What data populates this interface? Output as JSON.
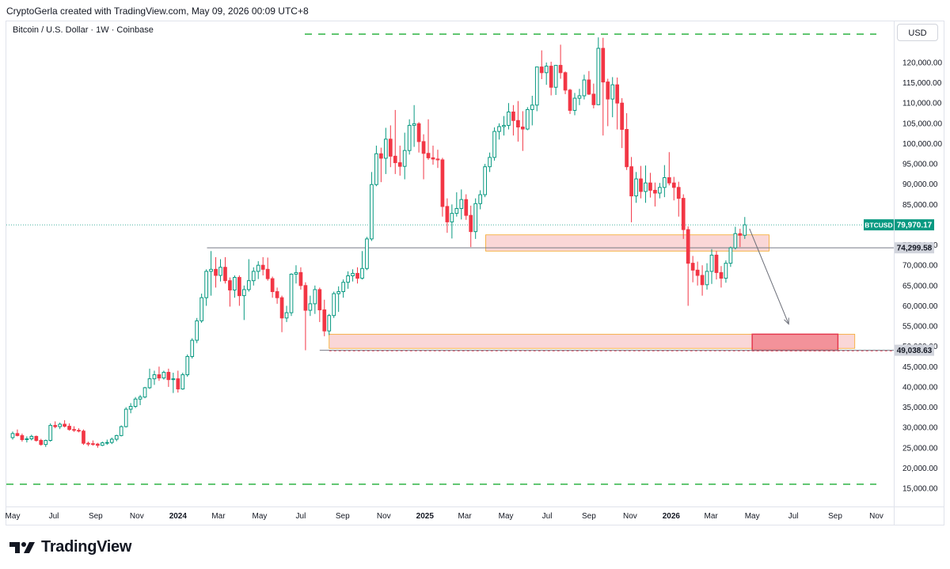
{
  "header": {
    "attribution": "CryptoGerla created with TradingView.com, May 09, 2026 00:09 UTC+8"
  },
  "chart_header": {
    "symbol_title": "Bitcoin / U.S. Dollar · 1W · Coinbase",
    "currency": "USD"
  },
  "brand": {
    "name": "TradingView",
    "logo_icon": "tradingview-logo-icon"
  },
  "colors": {
    "up": "#089981",
    "down": "#f23645",
    "zone_fill": "#f8c9c9",
    "zone_border": "#f5a623",
    "target_fill": "#f28b94",
    "target_border": "#e5394f",
    "dash_green": "#2fb344",
    "level_line": "#787b86"
  },
  "chart_data": {
    "type": "candlestick",
    "title": "Bitcoin / U.S. Dollar · 1W · Coinbase",
    "currency": "USD",
    "ylim": [
      12000,
      130000
    ],
    "y_ticks": [
      "120,000.00",
      "115,000.00",
      "110,000.00",
      "105,000.00",
      "100,000.00",
      "95,000.00",
      "90,000.00",
      "85,000.00",
      "75,000.00",
      "70,000.00",
      "65,000.00",
      "60,000.00",
      "55,000.00",
      "50,000.00",
      "45,000.00",
      "40,000.00",
      "35,000.00",
      "30,000.00",
      "25,000.00",
      "20,000.00",
      "15,000.00"
    ],
    "x_ticks": [
      {
        "label": "May",
        "date": "2023-05-01",
        "bold": false
      },
      {
        "label": "Jul",
        "date": "2023-07-01",
        "bold": false
      },
      {
        "label": "Sep",
        "date": "2023-09-01",
        "bold": false
      },
      {
        "label": "Nov",
        "date": "2023-11-01",
        "bold": false
      },
      {
        "label": "2024",
        "date": "2024-01-01",
        "bold": true
      },
      {
        "label": "Mar",
        "date": "2024-03-01",
        "bold": false
      },
      {
        "label": "May",
        "date": "2024-05-01",
        "bold": false
      },
      {
        "label": "Jul",
        "date": "2024-07-01",
        "bold": false
      },
      {
        "label": "Sep",
        "date": "2024-09-01",
        "bold": false
      },
      {
        "label": "Nov",
        "date": "2024-11-01",
        "bold": false
      },
      {
        "label": "2025",
        "date": "2025-01-01",
        "bold": true
      },
      {
        "label": "Mar",
        "date": "2025-03-01",
        "bold": false
      },
      {
        "label": "May",
        "date": "2025-05-01",
        "bold": false
      },
      {
        "label": "Jul",
        "date": "2025-07-01",
        "bold": false
      },
      {
        "label": "Sep",
        "date": "2025-09-01",
        "bold": false
      },
      {
        "label": "Nov",
        "date": "2025-11-01",
        "bold": false
      },
      {
        "label": "2026",
        "date": "2026-01-01",
        "bold": true
      },
      {
        "label": "Mar",
        "date": "2026-03-01",
        "bold": false
      },
      {
        "label": "May",
        "date": "2026-05-01",
        "bold": false
      },
      {
        "label": "Jul",
        "date": "2026-07-01",
        "bold": false
      },
      {
        "label": "Sep",
        "date": "2026-09-01",
        "bold": false
      },
      {
        "label": "Nov",
        "date": "2026-11-01",
        "bold": false
      }
    ],
    "price_labels": [
      {
        "symbol": "BTCUSD",
        "value": "79,970.17",
        "price": 79970.17
      },
      {
        "value": "74,299.58",
        "price": 74299.58
      },
      {
        "value": "49,038.63",
        "price": 49038.63
      }
    ],
    "levels": [
      {
        "price": 127000,
        "style": "dashed-green"
      },
      {
        "price": 16000,
        "style": "dashed-green"
      },
      {
        "price": 74299.58,
        "from": "2024-02-13",
        "style": "solid-gray"
      },
      {
        "price": 49038.63,
        "from": "2024-07-29",
        "style": "solid-gray"
      },
      {
        "price": 49038.63,
        "from": "2024-08-12",
        "style": "dotted-red"
      }
    ],
    "zones": [
      {
        "from": "2025-04-01",
        "to": "2026-05-26",
        "top": 77500,
        "bottom": 73500,
        "kind": "resistance"
      },
      {
        "from": "2024-08-12",
        "to": "2026-09-30",
        "top": 53000,
        "bottom": 49500,
        "kind": "support"
      },
      {
        "from": "2026-05-01",
        "to": "2026-09-05",
        "top": 53000,
        "bottom": 49038.63,
        "kind": "target"
      }
    ],
    "arrow": {
      "from": {
        "date": "2026-04-27",
        "price": 79000
      },
      "to": {
        "date": "2026-06-24",
        "price": 55500
      }
    },
    "start_date": "2023-05-01",
    "ohlc": [
      [
        27500,
        29000,
        27000,
        28500
      ],
      [
        28500,
        29500,
        27800,
        28000
      ],
      [
        28000,
        28500,
        26500,
        27000
      ],
      [
        27000,
        27800,
        26300,
        27200
      ],
      [
        27200,
        28200,
        26800,
        27800
      ],
      [
        27800,
        28000,
        26500,
        26800
      ],
      [
        26800,
        27200,
        25500,
        25800
      ],
      [
        25800,
        27000,
        25200,
        26800
      ],
      [
        26800,
        31000,
        26500,
        30500
      ],
      [
        30500,
        31500,
        29800,
        30200
      ],
      [
        30200,
        31200,
        29600,
        30800
      ],
      [
        30800,
        31800,
        30000,
        30300
      ],
      [
        30300,
        31000,
        29200,
        29500
      ],
      [
        29500,
        30300,
        28900,
        29300
      ],
      [
        29300,
        29800,
        28800,
        29100
      ],
      [
        29100,
        29500,
        25700,
        26100
      ],
      [
        26100,
        26500,
        25400,
        26000
      ],
      [
        26000,
        26800,
        25500,
        25900
      ],
      [
        25900,
        26200,
        25000,
        25600
      ],
      [
        25600,
        26500,
        25400,
        26200
      ],
      [
        26200,
        27000,
        25700,
        26300
      ],
      [
        26300,
        27500,
        25900,
        27100
      ],
      [
        27100,
        28200,
        26600,
        28000
      ],
      [
        28000,
        30500,
        27800,
        30200
      ],
      [
        30200,
        35000,
        30000,
        34500
      ],
      [
        34500,
        36000,
        33500,
        35200
      ],
      [
        35200,
        37500,
        34800,
        37000
      ],
      [
        37000,
        38000,
        35500,
        37500
      ],
      [
        37500,
        40000,
        37200,
        39800
      ],
      [
        39800,
        44500,
        39500,
        42000
      ],
      [
        42000,
        44000,
        40500,
        43000
      ],
      [
        43000,
        45000,
        41500,
        42200
      ],
      [
        42200,
        44000,
        41800,
        43600
      ],
      [
        43600,
        44500,
        40000,
        41800
      ],
      [
        41800,
        43500,
        38500,
        42000
      ],
      [
        42000,
        44000,
        38600,
        39500
      ],
      [
        39500,
        43500,
        39300,
        43000
      ],
      [
        43000,
        48000,
        42500,
        47500
      ],
      [
        47500,
        52000,
        47000,
        51500
      ],
      [
        51500,
        57000,
        50800,
        56300
      ],
      [
        56300,
        63000,
        55800,
        62000
      ],
      [
        62000,
        69000,
        60000,
        68500
      ],
      [
        68500,
        73500,
        62500,
        69000
      ],
      [
        69000,
        72000,
        64500,
        67500
      ],
      [
        67500,
        71500,
        66000,
        69500
      ],
      [
        69500,
        72000,
        65500,
        66200
      ],
      [
        66200,
        67000,
        59800,
        63900
      ],
      [
        63900,
        67500,
        62000,
        67000
      ],
      [
        67000,
        67500,
        60000,
        62500
      ],
      [
        62500,
        65000,
        56500,
        64000
      ],
      [
        64000,
        71500,
        63500,
        66200
      ],
      [
        66200,
        69500,
        65000,
        68500
      ],
      [
        68500,
        71000,
        66600,
        70000
      ],
      [
        70000,
        72000,
        67500,
        69000
      ],
      [
        69000,
        71900,
        66200,
        66700
      ],
      [
        66700,
        67200,
        62000,
        63500
      ],
      [
        63500,
        64500,
        60500,
        62000
      ],
      [
        62000,
        62500,
        53500,
        57000
      ],
      [
        57000,
        60000,
        56000,
        58300
      ],
      [
        58300,
        68000,
        57500,
        67800
      ],
      [
        67800,
        70000,
        65500,
        68200
      ],
      [
        68200,
        69500,
        64000,
        65000
      ],
      [
        65000,
        65800,
        49038,
        58900
      ],
      [
        58900,
        62500,
        57500,
        60500
      ],
      [
        60500,
        65000,
        58000,
        64000
      ],
      [
        64000,
        64500,
        56000,
        59000
      ],
      [
        59000,
        61500,
        52500,
        53800
      ],
      [
        53800,
        58000,
        52800,
        57600
      ],
      [
        57600,
        63500,
        57000,
        63000
      ],
      [
        63000,
        64800,
        58500,
        63500
      ],
      [
        63500,
        66500,
        62000,
        65800
      ],
      [
        65800,
        68500,
        64200,
        67400
      ],
      [
        67400,
        69000,
        66000,
        68000
      ],
      [
        68000,
        69500,
        65500,
        66800
      ],
      [
        66800,
        73500,
        66500,
        69200
      ],
      [
        69200,
        77000,
        68800,
        76500
      ],
      [
        76500,
        93000,
        76000,
        89900
      ],
      [
        89900,
        99500,
        89500,
        97500
      ],
      [
        97500,
        99000,
        90500,
        96400
      ],
      [
        96400,
        103900,
        92500,
        101100
      ],
      [
        101100,
        104500,
        94200,
        96900
      ],
      [
        96900,
        108300,
        92500,
        95300
      ],
      [
        95300,
        99500,
        92100,
        94400
      ],
      [
        94400,
        102700,
        91200,
        98300
      ],
      [
        98300,
        106000,
        97300,
        104500
      ],
      [
        104500,
        109500,
        99200,
        104900
      ],
      [
        104900,
        105300,
        97800,
        100500
      ],
      [
        100500,
        102300,
        91200,
        97600
      ],
      [
        97600,
        106000,
        96000,
        96500
      ],
      [
        96500,
        99500,
        94800,
        96200
      ],
      [
        96200,
        98500,
        94000,
        96000
      ],
      [
        96000,
        96500,
        82000,
        84500
      ],
      [
        84500,
        86500,
        78000,
        80700
      ],
      [
        80700,
        85000,
        76600,
        82800
      ],
      [
        82800,
        88000,
        82000,
        84000
      ],
      [
        84000,
        88700,
        81300,
        86200
      ],
      [
        86200,
        87500,
        81200,
        82300
      ],
      [
        82300,
        84700,
        74500,
        78300
      ],
      [
        78300,
        86500,
        76500,
        85200
      ],
      [
        85200,
        88500,
        83800,
        87400
      ],
      [
        87400,
        95000,
        86800,
        94300
      ],
      [
        94300,
        97800,
        93000,
        96600
      ],
      [
        96600,
        104000,
        95800,
        103000
      ],
      [
        103000,
        105000,
        101000,
        104200
      ],
      [
        104200,
        106800,
        102000,
        104500
      ],
      [
        104500,
        110000,
        103500,
        107800
      ],
      [
        107800,
        109500,
        102000,
        105700
      ],
      [
        105700,
        110500,
        100500,
        104100
      ],
      [
        104100,
        108000,
        98200,
        103600
      ],
      [
        103600,
        109000,
        103300,
        108400
      ],
      [
        108400,
        111800,
        104500,
        109500
      ],
      [
        109500,
        118900,
        108000,
        118900
      ],
      [
        118900,
        123000,
        115900,
        117500
      ],
      [
        117500,
        120000,
        114500,
        119100
      ],
      [
        119100,
        120200,
        111900,
        113900
      ],
      [
        113900,
        119000,
        112000,
        119300
      ],
      [
        119300,
        124400,
        116000,
        117500
      ],
      [
        117500,
        117800,
        112200,
        113200
      ],
      [
        113200,
        113500,
        107300,
        108200
      ],
      [
        108200,
        112500,
        107000,
        111200
      ],
      [
        111200,
        113500,
        109500,
        111800
      ],
      [
        111800,
        117000,
        110900,
        115700
      ],
      [
        115700,
        117900,
        112000,
        112200
      ],
      [
        112200,
        114800,
        108700,
        109600
      ],
      [
        109600,
        126200,
        109500,
        123500
      ],
      [
        123500,
        126100,
        102000,
        115200
      ],
      [
        115200,
        116000,
        104300,
        111000
      ],
      [
        111000,
        116400,
        106500,
        114500
      ],
      [
        114500,
        116300,
        103500,
        110000
      ],
      [
        110000,
        111200,
        98900,
        103500
      ],
      [
        103500,
        107500,
        93500,
        94300
      ],
      [
        94300,
        96700,
        80600,
        87100
      ],
      [
        87100,
        93000,
        85400,
        91300
      ],
      [
        91300,
        94500,
        86500,
        88200
      ],
      [
        88200,
        94600,
        85400,
        90300
      ],
      [
        90300,
        92800,
        86700,
        88500
      ],
      [
        88500,
        90400,
        84500,
        87800
      ],
      [
        87800,
        90300,
        86500,
        89200
      ],
      [
        89200,
        94700,
        86800,
        91600
      ],
      [
        91600,
        97900,
        89700,
        90300
      ],
      [
        90300,
        91800,
        86000,
        89200
      ],
      [
        89200,
        90600,
        82000,
        86500
      ],
      [
        86500,
        87500,
        76500,
        78800
      ],
      [
        78800,
        79600,
        60000,
        70500
      ],
      [
        70500,
        72300,
        65800,
        68800
      ],
      [
        68800,
        70900,
        65000,
        67500
      ],
      [
        67500,
        70000,
        62500,
        65200
      ],
      [
        65200,
        70500,
        64000,
        68500
      ],
      [
        68500,
        74000,
        65400,
        72500
      ],
      [
        72500,
        73500,
        66500,
        68200
      ],
      [
        68200,
        69800,
        64500,
        66800
      ],
      [
        66800,
        71200,
        65700,
        70500
      ],
      [
        70500,
        74600,
        69600,
        74300
      ],
      [
        74300,
        79500,
        73900,
        77800
      ],
      [
        77800,
        79000,
        74500,
        77400
      ],
      [
        77400,
        81900,
        76500,
        79970
      ]
    ]
  }
}
